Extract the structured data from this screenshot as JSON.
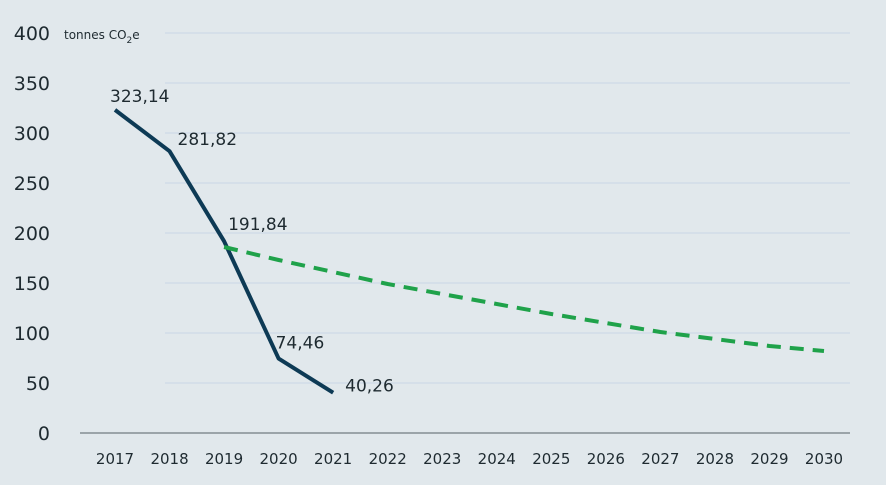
{
  "chart_data": {
    "type": "line",
    "ylabel": "tonnes CO",
    "ylabel_subscript": "2",
    "ylabel_suffix": "e",
    "ylim": [
      0,
      400
    ],
    "yticks": [
      "0",
      "50",
      "100",
      "150",
      "200",
      "250",
      "300",
      "350",
      "400"
    ],
    "x": [
      "2017",
      "2018",
      "2019",
      "2020",
      "2021",
      "2022",
      "2023",
      "2024",
      "2025",
      "2026",
      "2027",
      "2028",
      "2029",
      "2030"
    ],
    "grid": true,
    "series": [
      {
        "style": "solid",
        "color": "#0d3a55",
        "x": [
          "2017",
          "2018",
          "2019",
          "2020",
          "2021"
        ],
        "values": [
          323.14,
          281.82,
          191.84,
          74.46,
          40.26
        ],
        "labels": [
          "323,14",
          "281,82",
          "191,84",
          "74,46",
          "40,26"
        ]
      },
      {
        "style": "dashed",
        "color": "#1fa24a",
        "x": [
          "2019",
          "2020",
          "2021",
          "2022",
          "2023",
          "2024",
          "2025",
          "2026",
          "2027",
          "2028",
          "2029",
          "2030"
        ],
        "values": [
          186,
          173,
          161,
          149,
          139,
          129,
          119,
          110,
          101,
          94,
          87,
          82
        ]
      }
    ]
  }
}
